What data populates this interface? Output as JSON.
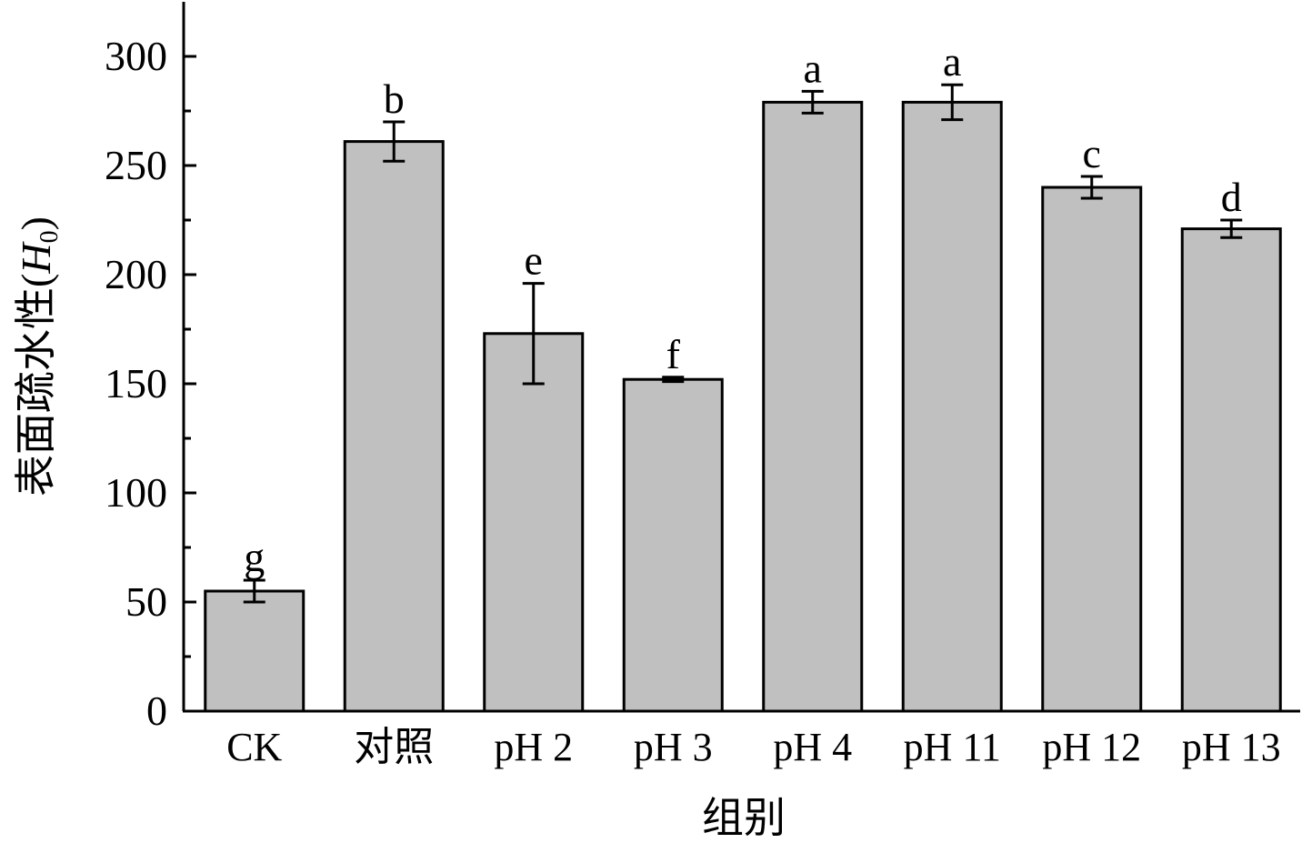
{
  "chart_data": {
    "type": "bar",
    "categories": [
      "CK",
      "对照",
      "pH 2",
      "pH 3",
      "pH 4",
      "pH 11",
      "pH 12",
      "pH 13"
    ],
    "values": [
      55,
      261,
      173,
      152,
      279,
      279,
      240,
      221
    ],
    "errors": [
      5,
      9,
      23,
      1,
      5,
      8,
      5,
      4
    ],
    "significance": [
      "g",
      "b",
      "e",
      "f",
      "a",
      "a",
      "c",
      "d"
    ],
    "xlabel": "组别",
    "ylabel": "表面疏水性(",
    "ylabel_italic": "H",
    "ylabel_sub": "0",
    "ylabel_close": ")",
    "ylim": [
      0,
      325
    ],
    "yticks": [
      0,
      50,
      100,
      150,
      200,
      250,
      300
    ],
    "bar_color": "#c0c0c0",
    "grid": false,
    "legend": "none"
  }
}
